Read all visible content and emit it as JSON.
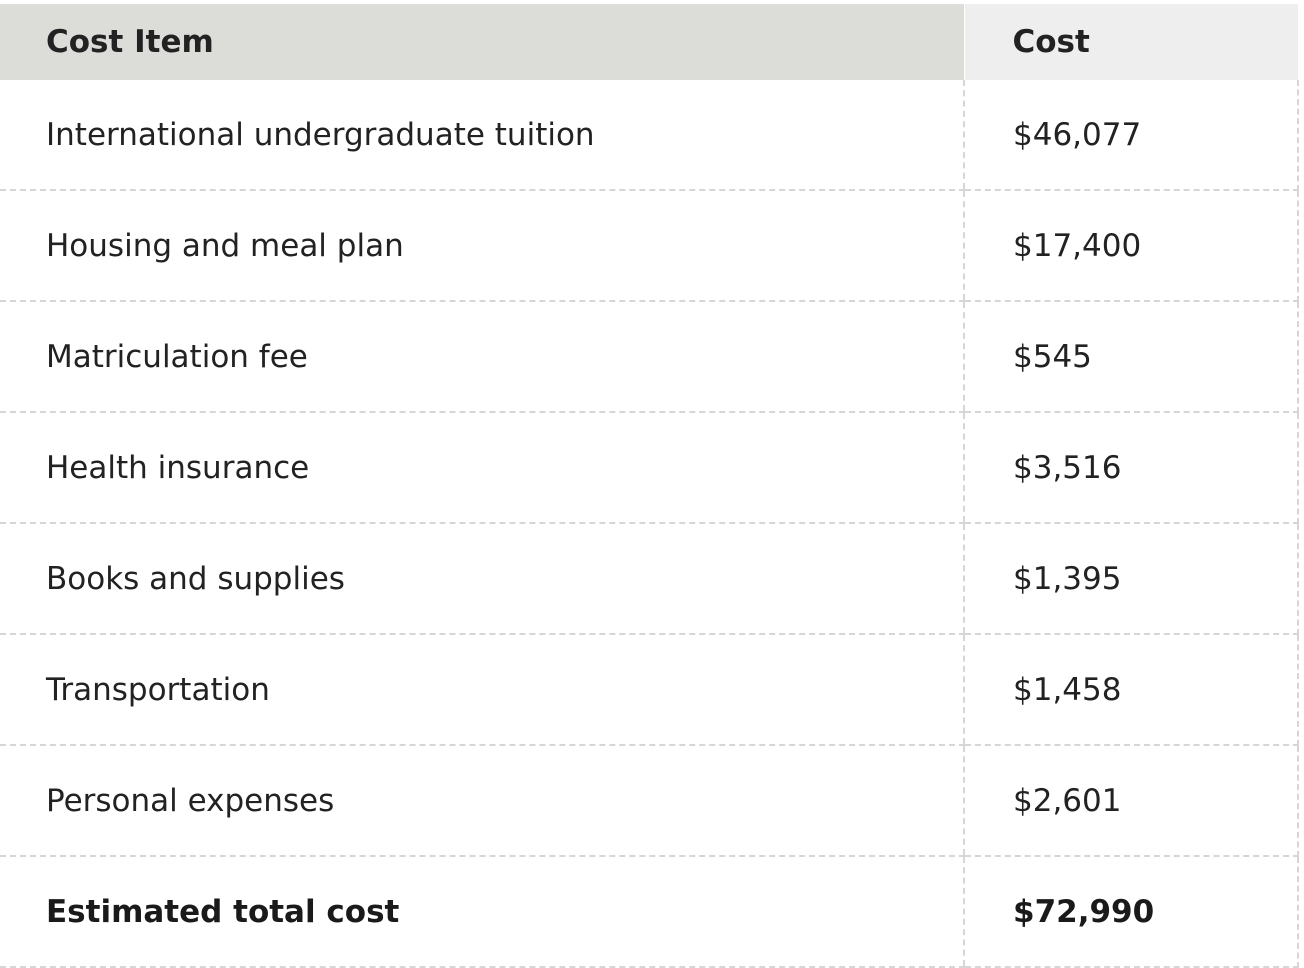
{
  "table": {
    "headers": {
      "item": "Cost Item",
      "cost": "Cost"
    },
    "rows": [
      {
        "item": "International undergraduate tuition",
        "cost": "$46,077"
      },
      {
        "item": "Housing and meal plan",
        "cost": "$17,400"
      },
      {
        "item": "Matriculation fee",
        "cost": "$545"
      },
      {
        "item": "Health insurance",
        "cost": "$3,516"
      },
      {
        "item": "Books and supplies",
        "cost": "$1,395"
      },
      {
        "item": "Transportation",
        "cost": "$1,458"
      },
      {
        "item": "Personal expenses",
        "cost": "$2,601"
      }
    ],
    "total": {
      "item": "Estimated total cost",
      "cost": "$72,990"
    }
  },
  "colors": {
    "header_item_bg": "#dcdcd8",
    "header_cost_bg": "#eeeeee",
    "row_divider": "#d6d6d6"
  }
}
